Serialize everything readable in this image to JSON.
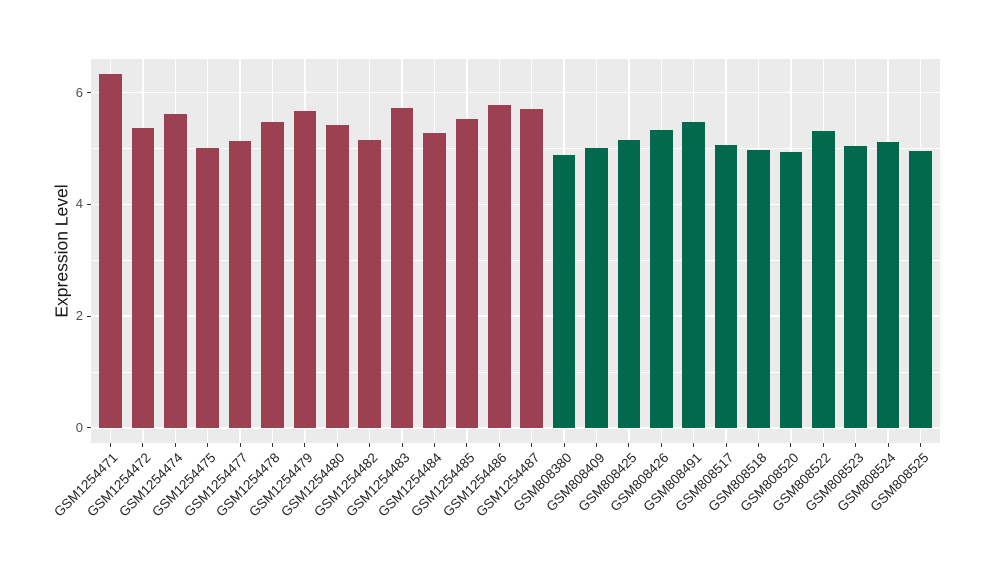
{
  "chart_data": {
    "type": "bar",
    "title": "",
    "xlabel": "",
    "ylabel": "Expression Level",
    "ylim": [
      -0.27,
      6.6
    ],
    "yticks": [
      0,
      2,
      4,
      6
    ],
    "ytick_labels": [
      "0",
      "2",
      "4",
      "6"
    ],
    "yticks_minor": [
      1,
      3,
      5
    ],
    "grid": true,
    "legend_position": "none",
    "panel_background": "#ebebeb",
    "gridline_color": "#ffffff",
    "tick_mark_color": "#333333",
    "x_tick_label_color": "#262626",
    "y_tick_label_color": "#4d4d4d",
    "group_colors": {
      "gsm1254_group": "#9c4152",
      "gsm808_group": "#03694c"
    },
    "categories": [
      "GSM1254471",
      "GSM1254472",
      "GSM1254474",
      "GSM1254475",
      "GSM1254477",
      "GSM1254478",
      "GSM1254479",
      "GSM1254480",
      "GSM1254482",
      "GSM1254483",
      "GSM1254484",
      "GSM1254485",
      "GSM1254486",
      "GSM1254487",
      "GSM808380",
      "GSM808409",
      "GSM808425",
      "GSM808426",
      "GSM808491",
      "GSM808517",
      "GSM808518",
      "GSM808520",
      "GSM808522",
      "GSM808523",
      "GSM808524",
      "GSM808525"
    ],
    "values": [
      6.33,
      5.36,
      5.61,
      5.0,
      5.13,
      5.47,
      5.67,
      5.42,
      5.15,
      5.72,
      5.28,
      5.52,
      5.78,
      5.71,
      4.88,
      5.01,
      5.15,
      5.33,
      5.47,
      5.07,
      4.98,
      4.93,
      5.31,
      5.04,
      5.11,
      4.96
    ],
    "bar_colors": [
      "#9c4152",
      "#9c4152",
      "#9c4152",
      "#9c4152",
      "#9c4152",
      "#9c4152",
      "#9c4152",
      "#9c4152",
      "#9c4152",
      "#9c4152",
      "#9c4152",
      "#9c4152",
      "#9c4152",
      "#9c4152",
      "#03694c",
      "#03694c",
      "#03694c",
      "#03694c",
      "#03694c",
      "#03694c",
      "#03694c",
      "#03694c",
      "#03694c",
      "#03694c",
      "#03694c",
      "#03694c"
    ]
  }
}
